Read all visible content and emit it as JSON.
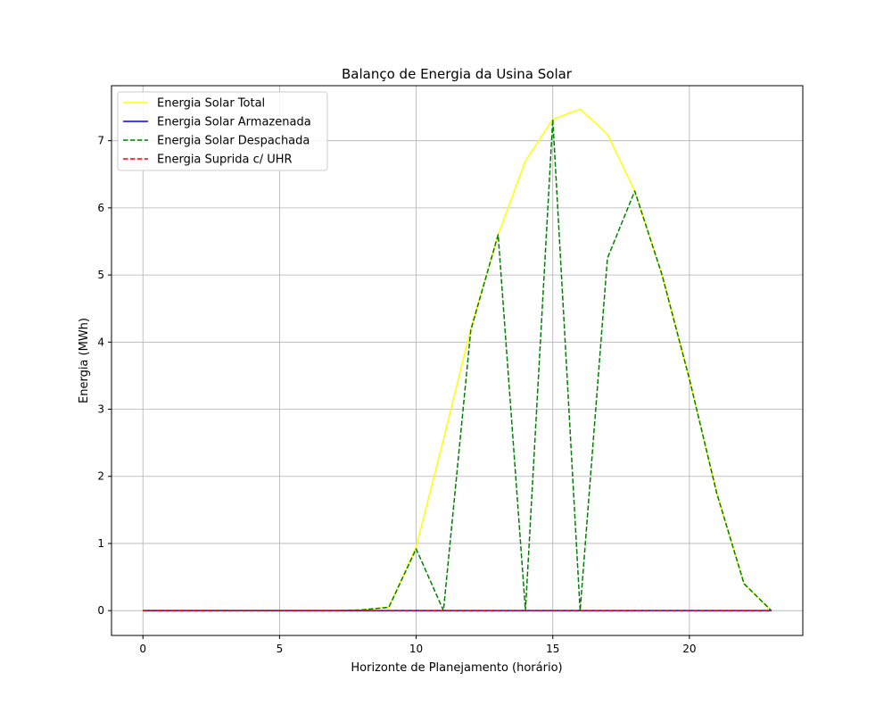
{
  "chart_data": {
    "type": "line",
    "title": "Balanço de Energia da Usina Solar",
    "xlabel": "Horizonte de Planejamento (horário)",
    "ylabel": "Energia (MWh)",
    "xlim": [
      -1.15,
      24.15
    ],
    "ylim": [
      -0.37,
      7.82
    ],
    "xticks": [
      0,
      5,
      10,
      15,
      20
    ],
    "yticks": [
      0,
      1,
      2,
      3,
      4,
      5,
      6,
      7
    ],
    "grid": true,
    "legend_position": "top-left",
    "x": [
      0,
      1,
      2,
      3,
      4,
      5,
      6,
      7,
      8,
      9,
      10,
      11,
      12,
      13,
      14,
      15,
      16,
      17,
      18,
      19,
      20,
      21,
      22,
      23
    ],
    "series": [
      {
        "name": "Energia Solar Total",
        "color": "#ffff00",
        "style": "solid",
        "values": [
          0,
          0,
          0,
          0,
          0,
          0,
          0,
          0,
          0.01,
          0.05,
          0.95,
          2.55,
          4.2,
          5.6,
          6.7,
          7.32,
          7.47,
          7.1,
          6.25,
          5.0,
          3.45,
          1.75,
          0.4,
          0.0
        ]
      },
      {
        "name": "Energia Solar Armazenada",
        "color": "#0000ff",
        "style": "solid",
        "values": [
          0,
          0,
          0,
          0,
          0,
          0,
          0,
          0,
          0,
          0,
          0,
          0,
          0,
          0,
          0,
          0,
          0,
          0,
          0,
          0,
          0,
          0,
          0,
          0
        ]
      },
      {
        "name": "Energia Solar Despachada",
        "color": "#008000",
        "style": "dashed",
        "values": [
          0,
          0,
          0,
          0,
          0,
          0,
          0,
          0,
          0.01,
          0.05,
          0.92,
          0.0,
          4.18,
          5.6,
          0.0,
          7.32,
          0.0,
          5.25,
          6.25,
          5.0,
          3.45,
          1.75,
          0.4,
          0.0
        ]
      },
      {
        "name": "Energia Suprida c/ UHR",
        "color": "#ff0000",
        "style": "dashed",
        "values": [
          0,
          0,
          0,
          0,
          0,
          0,
          0,
          0,
          0,
          0,
          0,
          0,
          0,
          0,
          0,
          0,
          0,
          0,
          0,
          0,
          0,
          0,
          0,
          0
        ]
      }
    ]
  }
}
